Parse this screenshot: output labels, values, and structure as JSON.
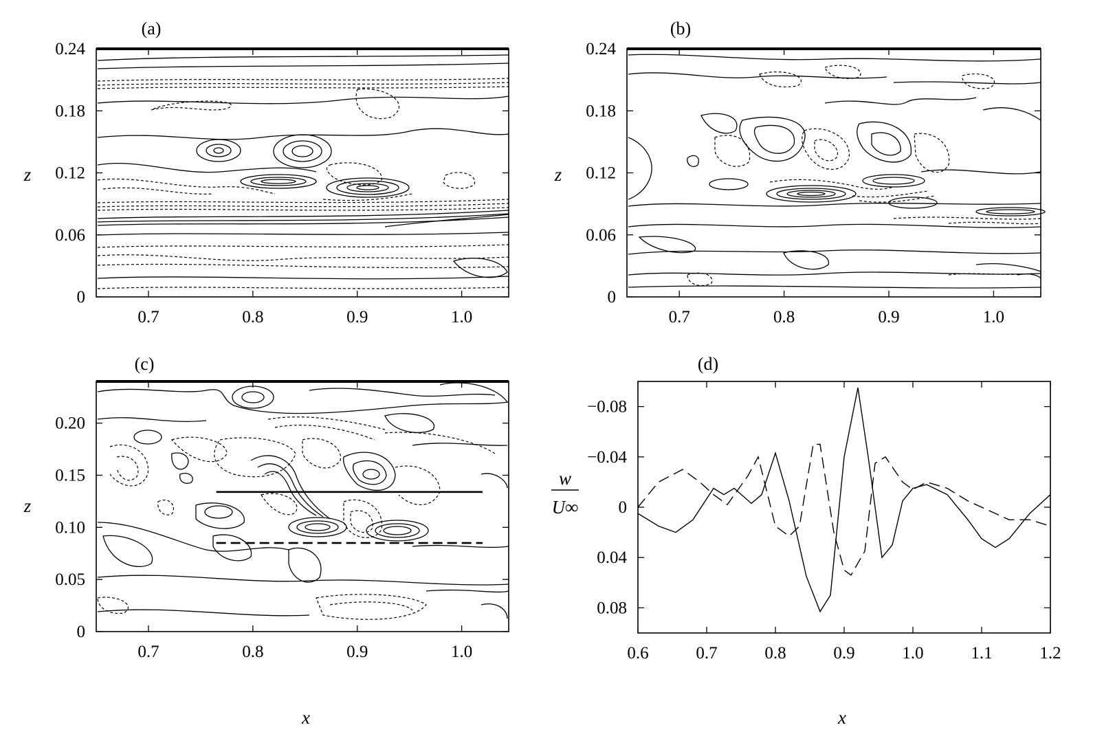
{
  "chart_data": [
    {
      "type": "contour",
      "panel_label": "(a)",
      "ylabel": "z",
      "xlabel": "",
      "xticks": [
        "0.7",
        "0.8",
        "0.9",
        "1.0"
      ],
      "yticks": [
        "0",
        "0.06",
        "0.12",
        "0.18",
        "0.24"
      ],
      "xlim": [
        0.65,
        1.045
      ],
      "ylim": [
        0.24,
        0
      ]
    },
    {
      "type": "contour",
      "panel_label": "(b)",
      "ylabel": "z",
      "xlabel": "",
      "xticks": [
        "0.7",
        "0.8",
        "0.9",
        "1.0"
      ],
      "yticks": [
        "0",
        "0.06",
        "0.12",
        "0.18",
        "0.24"
      ],
      "xlim": [
        0.65,
        1.045
      ],
      "ylim": [
        0.24,
        0
      ]
    },
    {
      "type": "contour",
      "panel_label": "(c)",
      "ylabel": "z",
      "xlabel": "x",
      "xticks": [
        "0.7",
        "0.8",
        "0.9",
        "1.0"
      ],
      "yticks": [
        "0",
        "0.05",
        "0.10",
        "0.15",
        "0.20"
      ],
      "xlim": [
        0.65,
        1.045
      ],
      "ylim": [
        0.24,
        0
      ],
      "lines": [
        {
          "style": "dashed",
          "z": 0.085,
          "x": [
            0.765,
            1.02
          ]
        },
        {
          "style": "solid",
          "z": 0.134,
          "x": [
            0.765,
            1.02
          ]
        }
      ]
    },
    {
      "type": "line",
      "panel_label": "(d)",
      "xlabel": "x",
      "ylabel_num": "w",
      "ylabel_den": "U∞",
      "xticks": [
        "0.6",
        "0.7",
        "0.8",
        "0.9",
        "1.0",
        "1.1",
        "1.2"
      ],
      "yticks": [
        "0.08",
        "0.04",
        "0",
        "−0.04",
        "−0.08"
      ],
      "xlim": [
        0.6,
        1.2
      ],
      "ylim": [
        -0.1,
        0.1
      ],
      "series": [
        {
          "style": "solid",
          "x": [
            0.6,
            0.63,
            0.655,
            0.68,
            0.71,
            0.725,
            0.74,
            0.765,
            0.78,
            0.8,
            0.82,
            0.845,
            0.865,
            0.88,
            0.9,
            0.92,
            0.935,
            0.955,
            0.97,
            0.985,
            1.0,
            1.02,
            1.05,
            1.08,
            1.1,
            1.12,
            1.14,
            1.17,
            1.2
          ],
          "y": [
            0.005,
            0.015,
            0.02,
            0.01,
            -0.015,
            -0.01,
            -0.015,
            -0.003,
            -0.01,
            -0.043,
            -0.005,
            0.055,
            0.083,
            0.07,
            -0.04,
            -0.095,
            -0.04,
            0.04,
            0.03,
            -0.005,
            -0.015,
            -0.018,
            -0.01,
            0.01,
            0.025,
            0.032,
            0.025,
            0.005,
            -0.01
          ]
        },
        {
          "style": "dashed",
          "x": [
            0.6,
            0.63,
            0.665,
            0.69,
            0.71,
            0.73,
            0.76,
            0.775,
            0.8,
            0.82,
            0.835,
            0.855,
            0.865,
            0.885,
            0.9,
            0.91,
            0.93,
            0.945,
            0.96,
            0.985,
            1.0,
            1.02,
            1.05,
            1.08,
            1.1,
            1.14,
            1.17,
            1.2
          ],
          "y": [
            0.0,
            -0.02,
            -0.03,
            -0.02,
            -0.01,
            -0.002,
            -0.025,
            -0.04,
            0.015,
            0.023,
            0.015,
            -0.05,
            -0.05,
            0.02,
            0.05,
            0.054,
            0.035,
            -0.035,
            -0.04,
            -0.02,
            -0.014,
            -0.02,
            -0.015,
            -0.005,
            0.0,
            0.01,
            0.01,
            0.015
          ]
        }
      ]
    }
  ]
}
